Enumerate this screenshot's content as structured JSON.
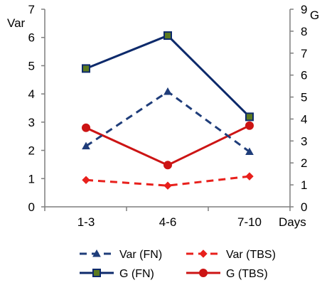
{
  "chart_data": {
    "type": "line",
    "categories": [
      "1-3",
      "4-6",
      "7-10"
    ],
    "left_axis": {
      "label": "Var",
      "ylim": [
        0,
        7
      ],
      "ticks": [
        "0",
        "1",
        "2",
        "3",
        "4",
        "5",
        "6",
        "7"
      ]
    },
    "right_axis": {
      "label": "G",
      "ylim": [
        0,
        9
      ],
      "ticks": [
        "0",
        "1",
        "2",
        "3",
        "4",
        "5",
        "6",
        "7",
        "8",
        "9"
      ]
    },
    "xlabel": "Days",
    "grid": false,
    "legend_position": "bottom",
    "series": [
      {
        "name": "Var (FN)",
        "axis": "left",
        "values": [
          2.15,
          4.08,
          1.95
        ],
        "color": "#1f3d7a",
        "dash": true,
        "marker": "triangle"
      },
      {
        "name": "G (FN)",
        "axis": "right",
        "values": [
          6.3,
          7.8,
          4.1
        ],
        "color": "#0d2a6b",
        "dash": false,
        "marker": "square",
        "marker_fill": "#5c7a1f"
      },
      {
        "name": "Var (TBS)",
        "axis": "left",
        "values": [
          0.95,
          0.75,
          1.08
        ],
        "color": "#e8201c",
        "dash": true,
        "marker": "diamond"
      },
      {
        "name": "G (TBS)",
        "axis": "right",
        "values": [
          3.6,
          1.9,
          3.7
        ],
        "color": "#cc1414",
        "dash": false,
        "marker": "circle"
      }
    ]
  }
}
